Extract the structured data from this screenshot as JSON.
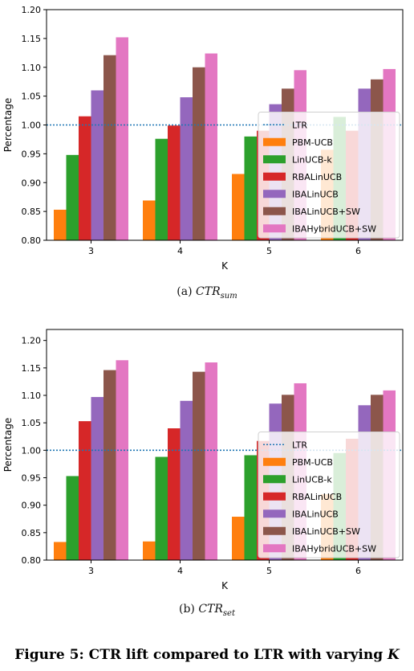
{
  "figure": {
    "caption": "Figure 5: CTR lift compared to LTR with varying",
    "caption_var": "K"
  },
  "subcaptions": [
    {
      "label": "(a)",
      "math": "CTR",
      "sub": "sum"
    },
    {
      "label": "(b)",
      "math": "CTR",
      "sub": "set"
    }
  ],
  "colors": {
    "LTR": "#1f77b4",
    "PBM-UCB": "#ff7f0e",
    "LinUCB-k": "#2ca02c",
    "RBALinUCB": "#d62728",
    "IBALinUCB": "#9467bd",
    "IBALinUCB+SW": "#8c564b",
    "IBAHybridUCB+SW": "#e377c2"
  },
  "chart_data": [
    {
      "type": "bar",
      "xlabel": "K",
      "ylabel": "Percentage",
      "categories": [
        "3",
        "4",
        "5",
        "6"
      ],
      "ylim": [
        0.8,
        1.2
      ],
      "yticks": [
        "0.80",
        "0.85",
        "0.90",
        "0.95",
        "1.00",
        "1.05",
        "1.10",
        "1.15",
        "1.20"
      ],
      "reference_line": {
        "name": "LTR",
        "value": 1.0,
        "style": "dotted"
      },
      "legend_position": "lower-right",
      "legend": [
        "LTR",
        "PBM-UCB",
        "LinUCB-k",
        "RBALinUCB",
        "IBALinUCB",
        "IBALinUCB+SW",
        "IBAHybridUCB+SW"
      ],
      "series": [
        {
          "name": "PBM-UCB",
          "values": [
            0.853,
            0.869,
            0.915,
            0.957
          ]
        },
        {
          "name": "LinUCB-k",
          "values": [
            0.948,
            0.976,
            0.98,
            1.014
          ]
        },
        {
          "name": "RBALinUCB",
          "values": [
            1.015,
            0.999,
            0.99,
            0.99
          ]
        },
        {
          "name": "IBALinUCB",
          "values": [
            1.06,
            1.048,
            1.036,
            1.063
          ]
        },
        {
          "name": "IBALinUCB+SW",
          "values": [
            1.121,
            1.1,
            1.063,
            1.079
          ]
        },
        {
          "name": "IBAHybridUCB+SW",
          "values": [
            1.152,
            1.124,
            1.095,
            1.097
          ]
        }
      ]
    },
    {
      "type": "bar",
      "xlabel": "K",
      "ylabel": "Percentage",
      "categories": [
        "3",
        "4",
        "5",
        "6"
      ],
      "ylim": [
        0.8,
        1.22
      ],
      "yticks": [
        "0.80",
        "0.85",
        "0.90",
        "0.95",
        "1.00",
        "1.05",
        "1.10",
        "1.15",
        "1.20"
      ],
      "reference_line": {
        "name": "LTR",
        "value": 1.0,
        "style": "dotted"
      },
      "legend_position": "lower-right",
      "legend": [
        "LTR",
        "PBM-UCB",
        "LinUCB-k",
        "RBALinUCB",
        "IBALinUCB",
        "IBALinUCB+SW",
        "IBAHybridUCB+SW"
      ],
      "series": [
        {
          "name": "PBM-UCB",
          "values": [
            0.833,
            0.834,
            0.879,
            0.92
          ]
        },
        {
          "name": "LinUCB-k",
          "values": [
            0.953,
            0.988,
            0.991,
            0.995
          ]
        },
        {
          "name": "RBALinUCB",
          "values": [
            1.053,
            1.04,
            1.017,
            1.021
          ]
        },
        {
          "name": "IBALinUCB",
          "values": [
            1.097,
            1.09,
            1.085,
            1.082
          ]
        },
        {
          "name": "IBALinUCB+SW",
          "values": [
            1.146,
            1.143,
            1.101,
            1.101
          ]
        },
        {
          "name": "IBAHybridUCB+SW",
          "values": [
            1.164,
            1.16,
            1.122,
            1.109
          ]
        }
      ]
    }
  ]
}
